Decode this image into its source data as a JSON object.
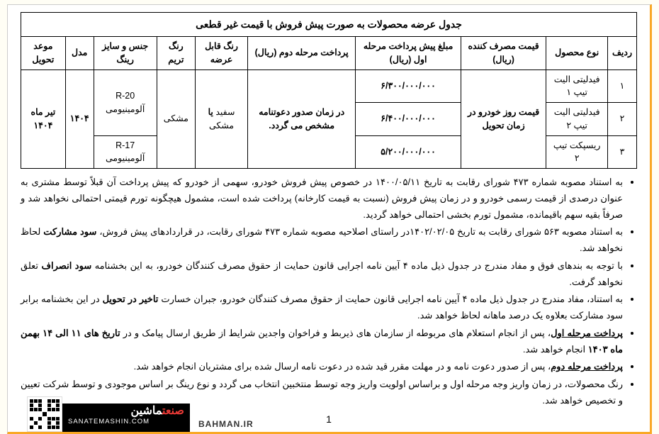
{
  "table": {
    "title": "جدول عرضه محصولات به صورت پیش فروش با قیمت غیر قطعی",
    "headers": {
      "row_no": "ردیف",
      "product": "نوع محصول",
      "consumer_price": "قیمت مصرف کننده (ریال)",
      "prepay1": "مبلغ پیش پرداخت مرحله اول (ریال)",
      "prepay2": "پرداخت مرحله دوم (ریال)",
      "color_avail": "رنگ قابل عرضه",
      "trim_color": "رنگ تریم",
      "ring": "جنس و سایز رینگ",
      "model": "مدل",
      "delivery": "موعد تحویل"
    },
    "rows": [
      {
        "no": "۱",
        "product": "فیدلیتی الیت تیپ ۱",
        "prepay1": "۶/۳۰۰/۰۰۰/۰۰۰"
      },
      {
        "no": "۲",
        "product": "فیدلیتی الیت تیپ ۲",
        "prepay1": "۶/۴۰۰/۰۰۰/۰۰۰"
      },
      {
        "no": "۳",
        "product": "ریسپکت تیپ ۲",
        "prepay1": "۵/۲۰۰/۰۰۰/۰۰۰"
      }
    ],
    "merged": {
      "consumer_price": "قیمت روز خودرو در زمان تحویل",
      "prepay2": "در زمان صدور دعوتنامه مشخص می گردد.",
      "color_avail": "سفید یا مشکی",
      "trim_color": "مشکی",
      "ring_top": "R-20 آلومینیومی",
      "ring_bottom": "R-17 آلومینیومی",
      "model": "۱۴۰۴",
      "delivery": "تیر ماه ۱۴۰۴"
    }
  },
  "notes": {
    "n1": "به استناد مصوبه شماره ۴۷۳ شورای رقابت به تاریخ ۱۴۰۰/۰۵/۱۱ در خصوص پیش فروش خودرو، سهمی از خودرو که پیش پرداخت آن قبلاً توسط مشتری به عنوان درصدی از قیمت رسمی خودرو و در زمان پیش فروش (نسبت به قیمت کارخانه) پرداخت شده است، مشمول هیچگونه تورم قیمتی احتمالی نخواهد شد و صرفاً بقیه سهم باقیمانده، مشمول تورم بخشی احتمالی خواهد گردید.",
    "n2_a": "به استناد مصوبه ۵۶۳ شورای رقابت به تاریخ ۱۴۰۲/۰۲/۰۵در راستای اصلاحیه مصوبه شماره ۴۷۳ شورای رقابت، در قراردادهای پیش فروش، ",
    "n2_b": "سود مشارکت",
    "n2_c": " لحاظ نخواهد شد.",
    "n3_a": "با توجه به بندهای فوق و مفاد مندرج در جدول ذیل ماده ۴ آیین نامه اجرایی قانون حمایت از حقوق مصرف کنندگان خودرو، به این بخشنامه ",
    "n3_b": "سود انصراف",
    "n3_c": " تعلق نخواهد گرفت.",
    "n4_a": "به استناد، مفاد مندرج در جدول ذیل ماده ۴ آیین نامه اجرایی قانون حمایت از حقوق مصرف کنندگان خودرو، جبران خسارت ",
    "n4_b": "تاخیر در تحویل",
    "n4_c": " در این بخشنامه برابر سود مشارکت بعلاوه یک درصد ماهانه لحاظ خواهد شد.",
    "n5_a": "پرداخت مرحله اول",
    "n5_b": "، پس از انجام استعلام های مربوطه از سازمان های ذیربط و فراخوان واجدین شرایط از طریق ارسال پیامک و در ",
    "n5_c": "تاریخ های ۱۱ الی ۱۴ بهمن ماه ۱۴۰۳",
    "n5_d": " انجام خواهد شد.",
    "n6_a": "پرداخت مرحله دوم",
    "n6_b": "، پس از صدور دعوت نامه و در مهلت مقرر قید شده در دعوت نامه ارسال شده برای مشتریان انجام خواهد شد.",
    "n7": "رنگ محصولات، در زمان واریز وجه مرحله اول و براساس اولویت واریز وجه توسط منتخبین انتخاب می گردد و نوع رینگ بر اساس موجودی و توسط شرکت تعیین و تخصیص خواهد شد."
  },
  "page_number": "1",
  "brand": {
    "fa_1": "صنعت",
    "fa_2": "ماشین",
    "en": "SANATEMASHIN.COM"
  },
  "bahman": "BAHMAN.IR"
}
